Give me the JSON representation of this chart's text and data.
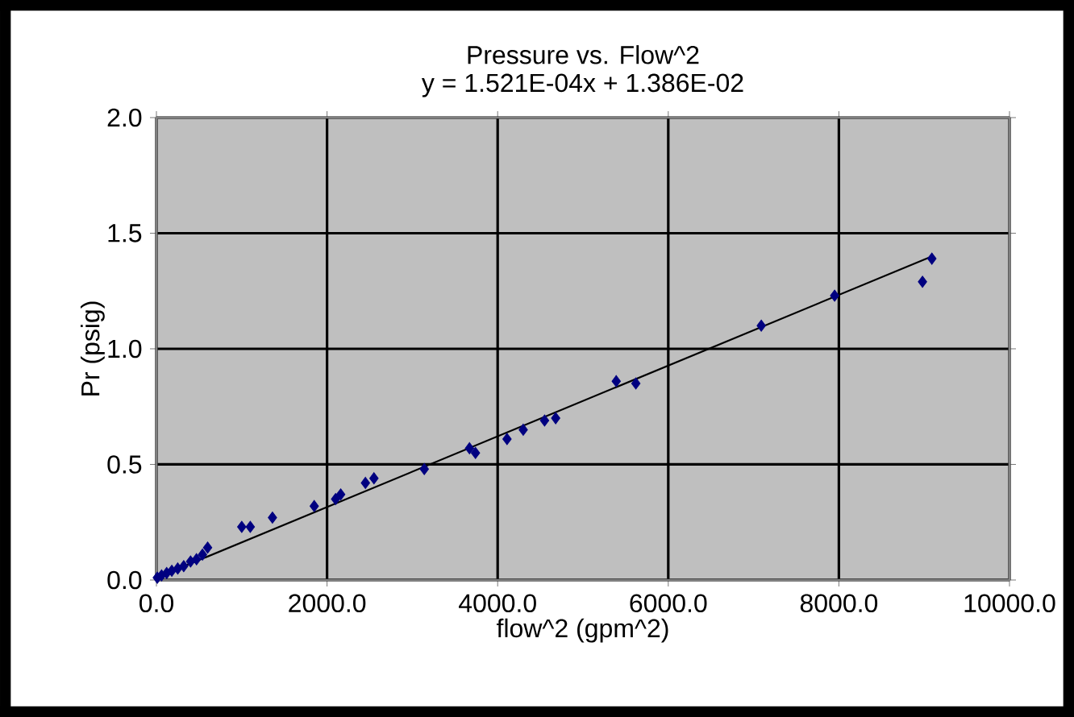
{
  "chart_data": {
    "type": "scatter",
    "title": "Pressure vs. Flow^2",
    "subtitle": "y = 1.521E-04x + 1.386E-02",
    "xlabel": "flow^2 (gpm^2)",
    "ylabel": "Pr (psig)",
    "xlim": [
      0,
      10000
    ],
    "ylim": [
      0,
      2
    ],
    "xticks": [
      {
        "value": 0,
        "label": "0.0"
      },
      {
        "value": 2000,
        "label": "2000.0"
      },
      {
        "value": 4000,
        "label": "4000.0"
      },
      {
        "value": 6000,
        "label": "6000.0"
      },
      {
        "value": 8000,
        "label": "8000.0"
      },
      {
        "value": 10000,
        "label": "10000.0"
      }
    ],
    "yticks": [
      {
        "value": 0,
        "label": "0.0"
      },
      {
        "value": 0.5,
        "label": "0.5"
      },
      {
        "value": 1,
        "label": "1.0"
      },
      {
        "value": 1.5,
        "label": "1.5"
      },
      {
        "value": 2,
        "label": "2.0"
      }
    ],
    "grid": true,
    "marker": "diamond",
    "series": [
      {
        "color": "#000080",
        "x": [
          10,
          60,
          120,
          180,
          250,
          320,
          400,
          470,
          540,
          600,
          1000,
          1100,
          1360,
          1850,
          2100,
          2160,
          2450,
          2550,
          3140,
          3670,
          3740,
          4110,
          4300,
          4550,
          4680,
          5390,
          5620,
          7090,
          7950,
          8980,
          9090
        ],
        "values": [
          0.01,
          0.02,
          0.03,
          0.04,
          0.05,
          0.06,
          0.08,
          0.09,
          0.11,
          0.14,
          0.23,
          0.23,
          0.27,
          0.32,
          0.35,
          0.37,
          0.42,
          0.44,
          0.48,
          0.57,
          0.55,
          0.61,
          0.65,
          0.69,
          0.7,
          0.86,
          0.85,
          1.1,
          1.23,
          1.29,
          1.39
        ]
      },
      {
        "type": "line",
        "color": "#000000",
        "line_style": "solid",
        "marker": "none",
        "x": [
          0,
          9090
        ],
        "values": [
          0.01,
          1.4
        ]
      }
    ]
  }
}
